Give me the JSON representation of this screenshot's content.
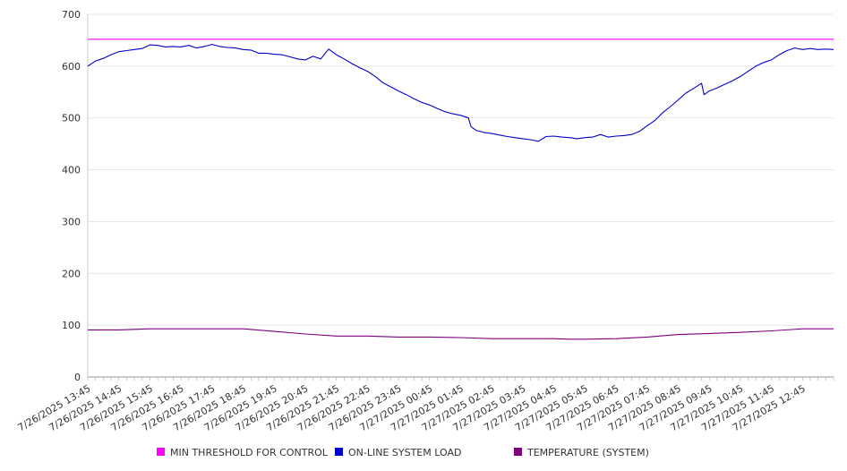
{
  "chart_data": {
    "type": "line",
    "title": "",
    "xlabel": "",
    "ylabel": "",
    "ylim": [
      0,
      700
    ],
    "y_ticks": [
      0,
      100,
      200,
      300,
      400,
      500,
      600,
      700
    ],
    "grid": "horizontal",
    "legend_position": "bottom",
    "x_start": "7/26/2025 13:45",
    "x_end": "7/27/2025 13:45",
    "x_tick_labels": [
      "7/26/2025 13:45",
      "7/26/2025 14:45",
      "7/26/2025 15:45",
      "7/26/2025 16:45",
      "7/26/2025 17:45",
      "7/26/2025 18:45",
      "7/26/2025 19:45",
      "7/26/2025 20:45",
      "7/26/2025 21:45",
      "7/26/2025 22:45",
      "7/26/2025 23:45",
      "7/27/2025 00:45",
      "7/27/2025 01:45",
      "7/27/2025 02:45",
      "7/27/2025 03:45",
      "7/27/2025 04:45",
      "7/27/2025 05:45",
      "7/27/2025 06:45",
      "7/27/2025 07:45",
      "7/27/2025 08:45",
      "7/27/2025 09:45",
      "7/27/2025 10:45",
      "7/27/2025 11:45",
      "7/27/2025 12:45"
    ],
    "series": [
      {
        "name": "MIN THRESHOLD FOR CONTROL",
        "color": "#ff00ff",
        "points": [
          [
            "7/26/2025 13:45",
            652
          ],
          [
            "7/27/2025 13:45",
            652
          ]
        ]
      },
      {
        "name": "ON-LINE SYSTEM LOAD",
        "color": "#0000cc",
        "points": [
          [
            "7/26/2025 13:45",
            600
          ],
          [
            "7/26/2025 14:00",
            610
          ],
          [
            "7/26/2025 14:15",
            615
          ],
          [
            "7/26/2025 14:30",
            622
          ],
          [
            "7/26/2025 14:45",
            628
          ],
          [
            "7/26/2025 15:00",
            630
          ],
          [
            "7/26/2025 15:15",
            632
          ],
          [
            "7/26/2025 15:30",
            634
          ],
          [
            "7/26/2025 15:45",
            641
          ],
          [
            "7/26/2025 16:00",
            640
          ],
          [
            "7/26/2025 16:15",
            637
          ],
          [
            "7/26/2025 16:30",
            638
          ],
          [
            "7/26/2025 16:45",
            637
          ],
          [
            "7/26/2025 17:00",
            640
          ],
          [
            "7/26/2025 17:15",
            635
          ],
          [
            "7/26/2025 17:30",
            638
          ],
          [
            "7/26/2025 17:45",
            642
          ],
          [
            "7/26/2025 18:00",
            638
          ],
          [
            "7/26/2025 18:15",
            636
          ],
          [
            "7/26/2025 18:30",
            635
          ],
          [
            "7/26/2025 18:45",
            632
          ],
          [
            "7/26/2025 19:00",
            631
          ],
          [
            "7/26/2025 19:15",
            625
          ],
          [
            "7/26/2025 19:30",
            625
          ],
          [
            "7/26/2025 19:45",
            623
          ],
          [
            "7/26/2025 20:00",
            622
          ],
          [
            "7/26/2025 20:15",
            618
          ],
          [
            "7/26/2025 20:30",
            614
          ],
          [
            "7/26/2025 20:45",
            612
          ],
          [
            "7/26/2025 21:00",
            619
          ],
          [
            "7/26/2025 21:15",
            614
          ],
          [
            "7/26/2025 21:30",
            633
          ],
          [
            "7/26/2025 21:45",
            622
          ],
          [
            "7/26/2025 22:00",
            614
          ],
          [
            "7/26/2025 22:15",
            605
          ],
          [
            "7/26/2025 22:30",
            597
          ],
          [
            "7/26/2025 22:45",
            590
          ],
          [
            "7/26/2025 23:00",
            580
          ],
          [
            "7/26/2025 23:15",
            568
          ],
          [
            "7/26/2025 23:30",
            560
          ],
          [
            "7/26/2025 23:45",
            552
          ],
          [
            "7/27/2025 00:00",
            545
          ],
          [
            "7/27/2025 00:15",
            537
          ],
          [
            "7/27/2025 00:30",
            530
          ],
          [
            "7/27/2025 00:45",
            525
          ],
          [
            "7/27/2025 01:00",
            518
          ],
          [
            "7/27/2025 01:15",
            512
          ],
          [
            "7/27/2025 01:30",
            508
          ],
          [
            "7/27/2025 01:45",
            505
          ],
          [
            "7/27/2025 02:00",
            500
          ],
          [
            "7/27/2025 02:05",
            483
          ],
          [
            "7/27/2025 02:15",
            476
          ],
          [
            "7/27/2025 02:30",
            472
          ],
          [
            "7/27/2025 02:45",
            470
          ],
          [
            "7/27/2025 03:00",
            467
          ],
          [
            "7/27/2025 03:15",
            464
          ],
          [
            "7/27/2025 03:30",
            462
          ],
          [
            "7/27/2025 03:45",
            460
          ],
          [
            "7/27/2025 04:00",
            458
          ],
          [
            "7/27/2025 04:15",
            455
          ],
          [
            "7/27/2025 04:30",
            464
          ],
          [
            "7/27/2025 04:45",
            465
          ],
          [
            "7/27/2025 05:00",
            463
          ],
          [
            "7/27/2025 05:15",
            462
          ],
          [
            "7/27/2025 05:30",
            460
          ],
          [
            "7/27/2025 05:45",
            462
          ],
          [
            "7/27/2025 06:00",
            463
          ],
          [
            "7/27/2025 06:15",
            468
          ],
          [
            "7/27/2025 06:30",
            463
          ],
          [
            "7/27/2025 06:45",
            465
          ],
          [
            "7/27/2025 07:00",
            466
          ],
          [
            "7/27/2025 07:15",
            468
          ],
          [
            "7/27/2025 07:30",
            474
          ],
          [
            "7/27/2025 07:45",
            485
          ],
          [
            "7/27/2025 08:00",
            495
          ],
          [
            "7/27/2025 08:15",
            510
          ],
          [
            "7/27/2025 08:30",
            522
          ],
          [
            "7/27/2025 08:45",
            535
          ],
          [
            "7/27/2025 09:00",
            548
          ],
          [
            "7/27/2025 09:15",
            557
          ],
          [
            "7/27/2025 09:30",
            567
          ],
          [
            "7/27/2025 09:35",
            545
          ],
          [
            "7/27/2025 09:45",
            552
          ],
          [
            "7/27/2025 10:00",
            558
          ],
          [
            "7/27/2025 10:15",
            565
          ],
          [
            "7/27/2025 10:30",
            572
          ],
          [
            "7/27/2025 10:45",
            580
          ],
          [
            "7/27/2025 11:00",
            590
          ],
          [
            "7/27/2025 11:15",
            600
          ],
          [
            "7/27/2025 11:30",
            607
          ],
          [
            "7/27/2025 11:45",
            612
          ],
          [
            "7/27/2025 12:00",
            622
          ],
          [
            "7/27/2025 12:15",
            630
          ],
          [
            "7/27/2025 12:30",
            635
          ],
          [
            "7/27/2025 12:45",
            632
          ],
          [
            "7/27/2025 13:00",
            634
          ],
          [
            "7/27/2025 13:15",
            632
          ],
          [
            "7/27/2025 13:30",
            633
          ],
          [
            "7/27/2025 13:45",
            632
          ]
        ]
      },
      {
        "name": "TEMPERATURE (SYSTEM)",
        "color": "#800080",
        "points": [
          [
            "7/26/2025 13:45",
            91
          ],
          [
            "7/26/2025 14:45",
            91
          ],
          [
            "7/26/2025 15:45",
            93
          ],
          [
            "7/26/2025 16:45",
            93
          ],
          [
            "7/26/2025 17:45",
            93
          ],
          [
            "7/26/2025 18:45",
            93
          ],
          [
            "7/26/2025 19:45",
            88
          ],
          [
            "7/26/2025 20:45",
            83
          ],
          [
            "7/26/2025 21:45",
            79
          ],
          [
            "7/26/2025 22:45",
            79
          ],
          [
            "7/26/2025 23:45",
            77
          ],
          [
            "7/27/2025 00:45",
            77
          ],
          [
            "7/27/2025 01:45",
            76
          ],
          [
            "7/27/2025 02:45",
            74
          ],
          [
            "7/27/2025 03:45",
            74
          ],
          [
            "7/27/2025 04:45",
            74
          ],
          [
            "7/27/2025 05:15",
            73
          ],
          [
            "7/27/2025 05:45",
            73
          ],
          [
            "7/27/2025 06:45",
            74
          ],
          [
            "7/27/2025 07:45",
            77
          ],
          [
            "7/27/2025 08:45",
            82
          ],
          [
            "7/27/2025 09:45",
            84
          ],
          [
            "7/27/2025 10:45",
            86
          ],
          [
            "7/27/2025 11:45",
            89
          ],
          [
            "7/27/2025 12:45",
            93
          ],
          [
            "7/27/2025 13:45",
            93
          ]
        ]
      }
    ]
  }
}
